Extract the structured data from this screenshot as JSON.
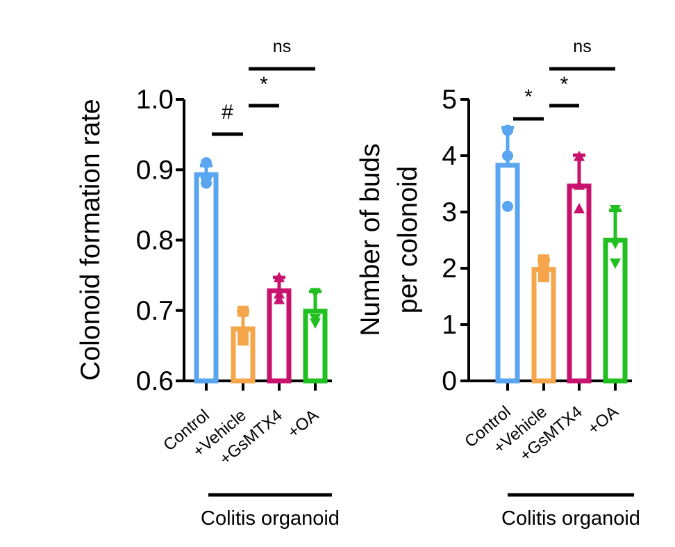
{
  "chart_data": [
    {
      "type": "bar",
      "categories": [
        "Control",
        "+Vehicle",
        "+GsMTX4",
        "+OA"
      ],
      "group_label": "Colitis organoid",
      "ylabel": "Colonoid formation rate",
      "ylim": [
        0.6,
        1.0
      ],
      "yticks": [
        "0.6",
        "0.7",
        "0.8",
        "0.9",
        "1.0"
      ],
      "series": [
        {
          "values": [
            0.893,
            0.674,
            0.728,
            0.699
          ],
          "error": [
            0.013,
            0.025,
            0.019,
            0.028
          ],
          "colors": [
            "#5aa5f0",
            "#f5a64b",
            "#c8136e",
            "#1fc01f"
          ],
          "markers": [
            "circle",
            "square",
            "triangle-up",
            "triangle-down"
          ],
          "points": [
            [
              0.91,
              0.889,
              0.881
            ],
            [
              0.699,
              0.666,
              0.658
            ],
            [
              0.746,
              0.723,
              0.715
            ],
            [
              0.726,
              0.689,
              0.683
            ]
          ]
        }
      ],
      "annotations": [
        {
          "text": "#",
          "from": "Control",
          "to": "+Vehicle"
        },
        {
          "text": "*",
          "from": "+Vehicle",
          "to": "+GsMTX4"
        },
        {
          "text": "ns",
          "from": "+Vehicle",
          "to": "+OA"
        }
      ],
      "grid": false,
      "legend": "none"
    },
    {
      "type": "bar",
      "categories": [
        "Control",
        "+Vehicle",
        "+GsMTX4",
        "+OA"
      ],
      "group_label": "Colitis organoid",
      "ylabel": "Number of buds\nper colonoid",
      "ylim": [
        0,
        5
      ],
      "yticks": [
        "0",
        "1",
        "2",
        "3",
        "4",
        "5"
      ],
      "series": [
        {
          "values": [
            3.83,
            1.98,
            3.46,
            2.5
          ],
          "error": [
            0.67,
            0.16,
            0.55,
            0.53
          ],
          "colors": [
            "#5aa5f0",
            "#f5a64b",
            "#c8136e",
            "#1fc01f"
          ],
          "markers": [
            "circle",
            "square",
            "triangle-up",
            "triangle-down"
          ],
          "points": [
            [
              4.45,
              4.0,
              3.1
            ],
            [
              2.15,
              1.95,
              1.85
            ],
            [
              3.98,
              3.47,
              3.05
            ],
            [
              3.05,
              2.45,
              2.1
            ]
          ]
        }
      ],
      "annotations": [
        {
          "text": "*",
          "from": "Control",
          "to": "+Vehicle"
        },
        {
          "text": "*",
          "from": "+Vehicle",
          "to": "+GsMTX4"
        },
        {
          "text": "ns",
          "from": "+Vehicle",
          "to": "+OA"
        }
      ],
      "grid": false,
      "legend": "none"
    }
  ]
}
